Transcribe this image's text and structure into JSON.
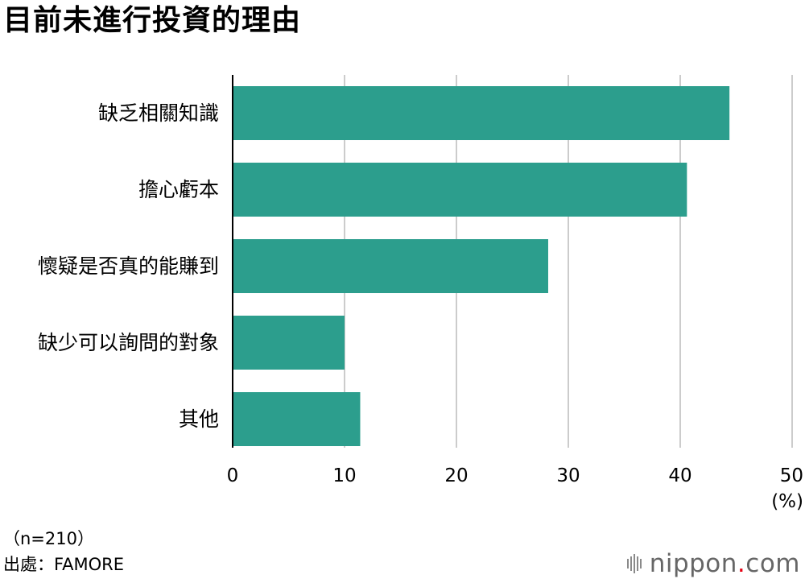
{
  "title": "目前未進行投資的理由",
  "chart_data": {
    "type": "bar",
    "orientation": "horizontal",
    "categories": [
      "缺乏相關知識",
      "擔心虧本",
      "懷疑是否真的能賺到",
      "缺少可以詢問的對象",
      "其他"
    ],
    "values": [
      44.4,
      40.6,
      28.2,
      10.0,
      11.4
    ],
    "xlim": [
      0,
      50
    ],
    "xticks": [
      "0",
      "10",
      "20",
      "30",
      "40",
      "50"
    ],
    "unit_label": "(%)",
    "grid": true,
    "bar_color": "#2c9e8d",
    "grid_color": "#cccccc"
  },
  "footer": {
    "sample": "（n=210）",
    "source": "出處：FAMORE"
  },
  "logo": {
    "name": "nippon",
    "dot": ".",
    "suffix": "com"
  }
}
